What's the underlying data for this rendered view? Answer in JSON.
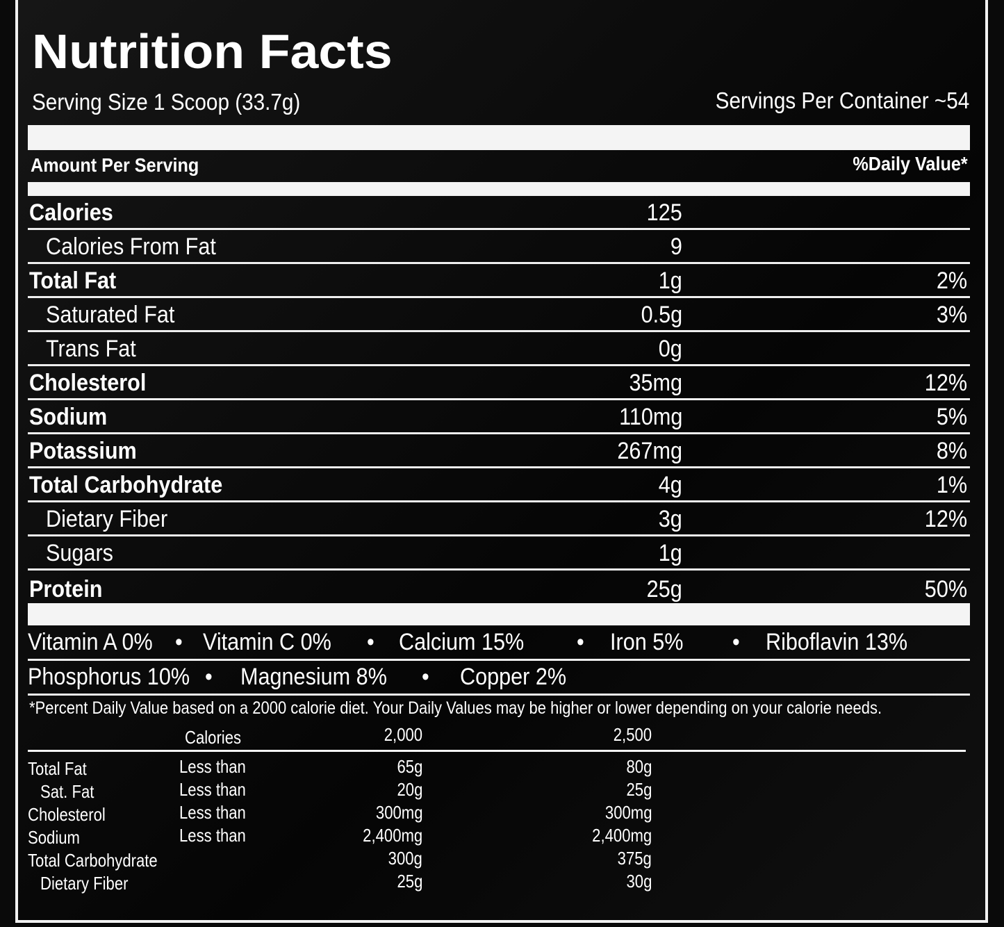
{
  "title": "Nutrition Facts",
  "serving_size": "Serving Size 1 Scoop (33.7g)",
  "servings_per_container": "Servings Per Container ~54",
  "amount_per_serving": "Amount Per Serving",
  "daily_value_header": "%Daily Value*",
  "nutrients": [
    {
      "name": "Calories",
      "amount": "125",
      "dv": "",
      "bold": true,
      "indent": false
    },
    {
      "name": "Calories From Fat",
      "amount": "9",
      "dv": "",
      "bold": false,
      "indent": true
    },
    {
      "name": "Total Fat",
      "amount": "1g",
      "dv": "2%",
      "bold": true,
      "indent": false
    },
    {
      "name": "Saturated Fat",
      "amount": "0.5g",
      "dv": "3%",
      "bold": false,
      "indent": true
    },
    {
      "name": "Trans Fat",
      "amount": "0g",
      "dv": "",
      "bold": false,
      "indent": true
    },
    {
      "name": "Cholesterol",
      "amount": "35mg",
      "dv": "12%",
      "bold": true,
      "indent": false
    },
    {
      "name": "Sodium",
      "amount": "110mg",
      "dv": "5%",
      "bold": true,
      "indent": false
    },
    {
      "name": "Potassium",
      "amount": "267mg",
      "dv": "8%",
      "bold": true,
      "indent": false
    },
    {
      "name": "Total Carbohydrate",
      "amount": "4g",
      "dv": "1%",
      "bold": true,
      "indent": false
    },
    {
      "name": "Dietary Fiber",
      "amount": "3g",
      "dv": "12%",
      "bold": false,
      "indent": true
    },
    {
      "name": "Sugars",
      "amount": "1g",
      "dv": "",
      "bold": false,
      "indent": true
    },
    {
      "name": "Protein",
      "amount": "25g",
      "dv": "50%",
      "bold": true,
      "indent": false
    }
  ],
  "vitamins_row1": [
    "Vitamin A 0%",
    "•",
    "Vitamin C 0%",
    "•",
    "Calcium 15%",
    "•",
    "Iron 5%",
    "•",
    "Riboflavin 13%"
  ],
  "vitamins_row2": [
    "Phosphorus 10%",
    "•",
    "Magnesium 8%",
    "•",
    "Copper 2%"
  ],
  "footnote": "*Percent Daily Value based on a 2000 calorie diet. Your Daily Values may be higher or lower depending on your calorie needs.",
  "reference_table": {
    "header": {
      "label": "Calories",
      "c1": "2,000",
      "c2": "2,500"
    },
    "rows": [
      {
        "name": "Total Fat",
        "qualifier": "Less than",
        "c1": "65g",
        "c2": "80g",
        "indent": false
      },
      {
        "name": "Sat. Fat",
        "qualifier": "Less than",
        "c1": "20g",
        "c2": "25g",
        "indent": true
      },
      {
        "name": "Cholesterol",
        "qualifier": "Less than",
        "c1": "300mg",
        "c2": "300mg",
        "indent": false
      },
      {
        "name": "Sodium",
        "qualifier": "Less than",
        "c1": "2,400mg",
        "c2": "2,400mg",
        "indent": false
      },
      {
        "name": "Total Carbohydrate",
        "qualifier": "",
        "c1": "300g",
        "c2": "375g",
        "indent": false
      },
      {
        "name": "Dietary Fiber",
        "qualifier": "",
        "c1": "25g",
        "c2": "30g",
        "indent": true
      }
    ]
  }
}
